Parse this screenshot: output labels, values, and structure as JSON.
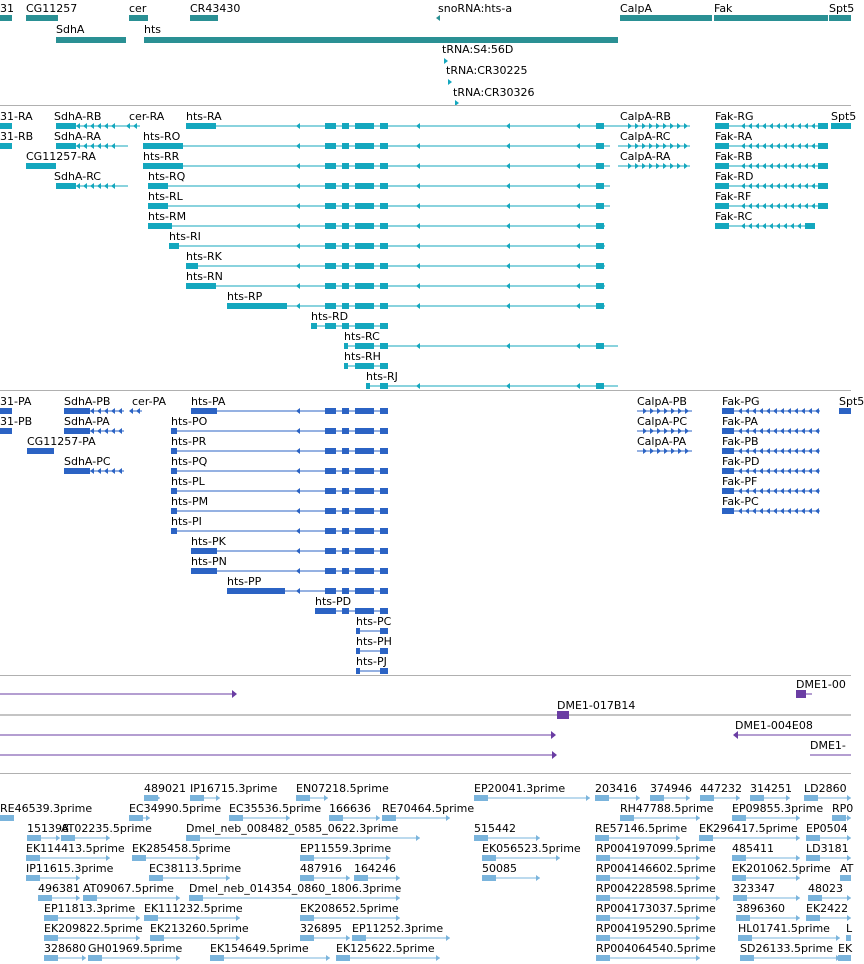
{
  "colors": {
    "gene": "#2a9094",
    "transcript": "#14a7be",
    "protein": "#2b63c4",
    "bac": "#6a3da3",
    "est": "#7ab4dc",
    "separator": "#b0b0b0"
  },
  "tracks": {
    "genes": {
      "features": [
        {
          "label": "31"
        },
        {
          "label": "CG11257"
        },
        {
          "label": "cer"
        },
        {
          "label": "CR43430"
        },
        {
          "label": "snoRNA:hts-a"
        },
        {
          "label": "CalpA"
        },
        {
          "label": "Fak"
        },
        {
          "label": "Spt5"
        },
        {
          "label": "SdhA"
        },
        {
          "label": "hts"
        },
        {
          "label": "tRNA:S4:56D"
        },
        {
          "label": "tRNA:CR30225"
        },
        {
          "label": "tRNA:CR30326"
        }
      ]
    },
    "transcripts": {
      "features": [
        {
          "label": "31-RA"
        },
        {
          "label": "31-RB"
        },
        {
          "label": "SdhA-RB"
        },
        {
          "label": "SdhA-RA"
        },
        {
          "label": "CG11257-RA"
        },
        {
          "label": "SdhA-RC"
        },
        {
          "label": "cer-RA"
        },
        {
          "label": "hts-RA"
        },
        {
          "label": "hts-RO"
        },
        {
          "label": "hts-RR"
        },
        {
          "label": "hts-RQ"
        },
        {
          "label": "hts-RL"
        },
        {
          "label": "hts-RM"
        },
        {
          "label": "hts-RI"
        },
        {
          "label": "hts-RK"
        },
        {
          "label": "hts-RN"
        },
        {
          "label": "hts-RP"
        },
        {
          "label": "hts-RD"
        },
        {
          "label": "hts-RC"
        },
        {
          "label": "hts-RH"
        },
        {
          "label": "hts-RJ"
        },
        {
          "label": "CalpA-RB"
        },
        {
          "label": "CalpA-RC"
        },
        {
          "label": "CalpA-RA"
        },
        {
          "label": "Fak-RG"
        },
        {
          "label": "Fak-RA"
        },
        {
          "label": "Fak-RB"
        },
        {
          "label": "Fak-RD"
        },
        {
          "label": "Fak-RF"
        },
        {
          "label": "Fak-RC"
        },
        {
          "label": "Spt5"
        }
      ]
    },
    "proteins": {
      "features": [
        {
          "label": "31-PA"
        },
        {
          "label": "31-PB"
        },
        {
          "label": "SdhA-PB"
        },
        {
          "label": "SdhA-PA"
        },
        {
          "label": "CG11257-PA"
        },
        {
          "label": "SdhA-PC"
        },
        {
          "label": "cer-PA"
        },
        {
          "label": "hts-PA"
        },
        {
          "label": "hts-PO"
        },
        {
          "label": "hts-PR"
        },
        {
          "label": "hts-PQ"
        },
        {
          "label": "hts-PL"
        },
        {
          "label": "hts-PM"
        },
        {
          "label": "hts-PI"
        },
        {
          "label": "hts-PK"
        },
        {
          "label": "hts-PN"
        },
        {
          "label": "hts-PP"
        },
        {
          "label": "hts-PD"
        },
        {
          "label": "hts-PC"
        },
        {
          "label": "hts-PH"
        },
        {
          "label": "hts-PJ"
        },
        {
          "label": "CalpA-PB"
        },
        {
          "label": "CalpA-PC"
        },
        {
          "label": "CalpA-PA"
        },
        {
          "label": "Fak-PG"
        },
        {
          "label": "Fak-PA"
        },
        {
          "label": "Fak-PB"
        },
        {
          "label": "Fak-PD"
        },
        {
          "label": "Fak-PF"
        },
        {
          "label": "Fak-PC"
        },
        {
          "label": "Spt5"
        }
      ]
    },
    "bac_clones": {
      "features": [
        {
          "label": "DME1-00"
        },
        {
          "label": "DME1-017B14"
        },
        {
          "label": "DME1-004E08"
        },
        {
          "label": "DME1-"
        }
      ]
    },
    "ests": {
      "features": [
        {
          "label": "489021"
        },
        {
          "label": "IP16715.3prime"
        },
        {
          "label": "EN07218.5prime"
        },
        {
          "label": "EP20041.3prime"
        },
        {
          "label": "203416"
        },
        {
          "label": "374946"
        },
        {
          "label": "447232"
        },
        {
          "label": "314251"
        },
        {
          "label": "LD2860"
        },
        {
          "label": "RE46539.3prime"
        },
        {
          "label": "EC34990.5prime"
        },
        {
          "label": "EC35536.5prime"
        },
        {
          "label": "166636"
        },
        {
          "label": "RE70464.5prime"
        },
        {
          "label": "RH47788.5prime"
        },
        {
          "label": "EP09855.3prime"
        },
        {
          "label": "RP0"
        },
        {
          "label": "151398"
        },
        {
          "label": "AT02235.5prime"
        },
        {
          "label": "Dmel_neb_008482_0585_0622.3prime"
        },
        {
          "label": "515442"
        },
        {
          "label": "RE57146.5prime"
        },
        {
          "label": "EK296417.5prime"
        },
        {
          "label": "EP0504"
        },
        {
          "label": "EK114413.5prime"
        },
        {
          "label": "EK285458.5prime"
        },
        {
          "label": "EP11559.3prime"
        },
        {
          "label": "EK056523.5prime"
        },
        {
          "label": "RP004197099.5prime"
        },
        {
          "label": "485411"
        },
        {
          "label": "LD3181"
        },
        {
          "label": "IP11615.3prime"
        },
        {
          "label": "EC38113.5prime"
        },
        {
          "label": "487916"
        },
        {
          "label": "164246"
        },
        {
          "label": "50085"
        },
        {
          "label": "RP004146602.5prime"
        },
        {
          "label": "EK201062.5prime"
        },
        {
          "label": "AT"
        },
        {
          "label": "496381"
        },
        {
          "label": "AT09067.5prime"
        },
        {
          "label": "Dmel_neb_014354_0860_1806.3prime"
        },
        {
          "label": "RP004228598.5prime"
        },
        {
          "label": "323347"
        },
        {
          "label": "48023"
        },
        {
          "label": "EP11813.3prime"
        },
        {
          "label": "EK111232.5prime"
        },
        {
          "label": "EK208652.5prime"
        },
        {
          "label": "RP004173037.5prime"
        },
        {
          "label": "3896360"
        },
        {
          "label": "EK2422"
        },
        {
          "label": "EK209822.5prime"
        },
        {
          "label": "EK213260.5prime"
        },
        {
          "label": "326895"
        },
        {
          "label": "EP11252.3prime"
        },
        {
          "label": "RP004195290.5prime"
        },
        {
          "label": "HL01741.5prime"
        },
        {
          "label": "L"
        },
        {
          "label": "328680"
        },
        {
          "label": "GH01969.5prime"
        },
        {
          "label": "EK154649.5prime"
        },
        {
          "label": "EK125622.5prime"
        },
        {
          "label": "RP004064540.5prime"
        },
        {
          "label": "SD26133.5prime"
        },
        {
          "label": "EK"
        }
      ]
    }
  }
}
